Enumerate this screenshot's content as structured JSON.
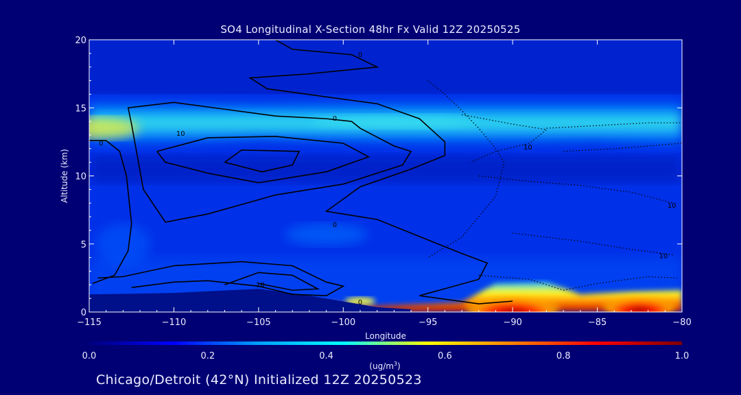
{
  "chart_data": {
    "type": "heatmap",
    "title": "SO4 Longitudinal X-Section 48hr  Fx Valid 12Z 20250525",
    "xlabel": "Longitude",
    "ylabel": "Altitude (km)",
    "xlim": [
      -115,
      -80
    ],
    "ylim": [
      0,
      20
    ],
    "x_ticks": [
      -115,
      -110,
      -105,
      -100,
      -95,
      -90,
      -85,
      -80
    ],
    "x_tick_labels": [
      "−115",
      "−110",
      "−105",
      "−100",
      "−95",
      "−90",
      "−85",
      "−80"
    ],
    "y_ticks": [
      0,
      5,
      10,
      15,
      20
    ],
    "y_tick_labels": [
      "0",
      "5",
      "10",
      "15",
      "20"
    ],
    "colorbar": {
      "min": 0.0,
      "max": 1.0,
      "tick_labels": [
        "0.0",
        "0.2",
        "0.4",
        "0.6",
        "0.8",
        "1.0"
      ],
      "units": "(ug/m",
      "units_sup": "3",
      "units_end": ")",
      "colormap": [
        "#000080",
        "#0000ff",
        "#00a0ff",
        "#00ffff",
        "#ffff00",
        "#ff8000",
        "#ff0000",
        "#800000"
      ]
    },
    "field_features": [
      {
        "feature": "upper aerosol layer",
        "lon_range": [
          -115,
          -80
        ],
        "alt_center_km": 13.8,
        "peak_value": 0.6,
        "peak_lon": -114
      },
      {
        "feature": "boundary layer plume",
        "lon_range": [
          -100,
          -80
        ],
        "alt_range_km": [
          0,
          2
        ],
        "peak_value": 1.0,
        "peak_lon": -90
      }
    ],
    "contour_labels": [
      {
        "text": "0",
        "lon": -99.0,
        "alt": 18.9
      },
      {
        "text": "0",
        "lon": -100.5,
        "alt": 14.2
      },
      {
        "text": "10",
        "lon": -109.6,
        "alt": 13.1
      },
      {
        "text": "0",
        "lon": -114.3,
        "alt": 12.4
      },
      {
        "text": "0",
        "lon": -100.5,
        "alt": 6.4
      },
      {
        "text": "10",
        "lon": -104.9,
        "alt": 2.0
      },
      {
        "text": "0",
        "lon": -99.0,
        "alt": 0.7
      },
      {
        "text": "10",
        "lon": -89.1,
        "alt": 12.1
      },
      {
        "text": "10",
        "lon": -80.6,
        "alt": 7.8
      },
      {
        "text": "10",
        "lon": -81.1,
        "alt": 4.1
      }
    ]
  },
  "footer": "Chicago/Detroit (42°N) Initialized 12Z 20250523"
}
